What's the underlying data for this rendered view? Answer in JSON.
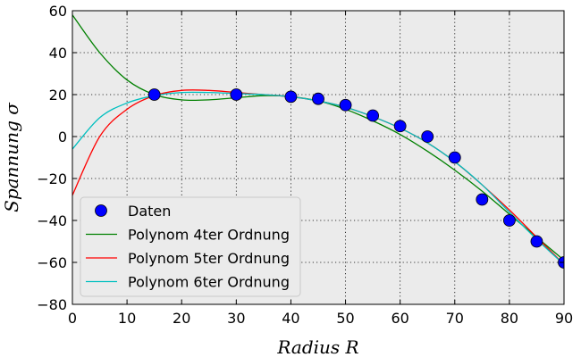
{
  "chart_data": {
    "type": "line",
    "title": "",
    "xlabel": "Radius R",
    "ylabel": "Spannung σ",
    "xlim": [
      0,
      90
    ],
    "ylim": [
      -80,
      60
    ],
    "xticks": [
      0,
      10,
      20,
      30,
      40,
      50,
      60,
      70,
      80,
      90
    ],
    "xtick_labels": [
      "0",
      "10",
      "20",
      "30",
      "40",
      "50",
      "60",
      "70",
      "80",
      "90"
    ],
    "yticks": [
      -80,
      -60,
      -40,
      -20,
      0,
      20,
      40,
      60
    ],
    "ytick_labels": [
      "−80",
      "−60",
      "−40",
      "−20",
      "0",
      "20",
      "40",
      "60"
    ],
    "grid": true,
    "legend_position": "bottom-left",
    "background": "#ebebeb",
    "series": [
      {
        "name": "Daten",
        "kind": "scatter",
        "color": "#0000ff",
        "points": [
          [
            15,
            20
          ],
          [
            30,
            20
          ],
          [
            40,
            19
          ],
          [
            45,
            18
          ],
          [
            50,
            15
          ],
          [
            55,
            10
          ],
          [
            60,
            5
          ],
          [
            65,
            0
          ],
          [
            70,
            -10
          ],
          [
            75,
            -30
          ],
          [
            80,
            -40
          ],
          [
            85,
            -50
          ],
          [
            90,
            -60
          ]
        ]
      },
      {
        "name": "Polynom 4ter Ordnung",
        "kind": "line",
        "color": "#008000",
        "points": [
          [
            0,
            58
          ],
          [
            5,
            40
          ],
          [
            10,
            27
          ],
          [
            15,
            20
          ],
          [
            20,
            17.5
          ],
          [
            25,
            17.5
          ],
          [
            30,
            18.5
          ],
          [
            35,
            19.5
          ],
          [
            40,
            19
          ],
          [
            45,
            17
          ],
          [
            50,
            13
          ],
          [
            55,
            7.5
          ],
          [
            60,
            1
          ],
          [
            65,
            -7
          ],
          [
            70,
            -16
          ],
          [
            75,
            -26
          ],
          [
            80,
            -37
          ],
          [
            85,
            -48
          ],
          [
            90,
            -59
          ]
        ]
      },
      {
        "name": "Polynom 5ter Ordnung",
        "kind": "line",
        "color": "#ff0000",
        "points": [
          [
            0,
            -28
          ],
          [
            5,
            0
          ],
          [
            10,
            13
          ],
          [
            15,
            19.5
          ],
          [
            20,
            22
          ],
          [
            25,
            22
          ],
          [
            30,
            21
          ],
          [
            35,
            20
          ],
          [
            40,
            19
          ],
          [
            45,
            17
          ],
          [
            50,
            14
          ],
          [
            55,
            9.5
          ],
          [
            60,
            4
          ],
          [
            65,
            -3
          ],
          [
            70,
            -12
          ],
          [
            75,
            -23
          ],
          [
            80,
            -35
          ],
          [
            85,
            -48
          ],
          [
            90,
            -61
          ]
        ]
      },
      {
        "name": "Polynom 6ter Ordnung",
        "kind": "line",
        "color": "#00bfbf",
        "points": [
          [
            0,
            -6
          ],
          [
            5,
            9
          ],
          [
            10,
            16
          ],
          [
            15,
            19.5
          ],
          [
            20,
            21
          ],
          [
            25,
            21
          ],
          [
            30,
            20.5
          ],
          [
            35,
            20
          ],
          [
            40,
            19
          ],
          [
            45,
            17
          ],
          [
            50,
            14
          ],
          [
            55,
            9.5
          ],
          [
            60,
            4
          ],
          [
            65,
            -3
          ],
          [
            70,
            -12
          ],
          [
            75,
            -23
          ],
          [
            80,
            -36
          ],
          [
            85,
            -49
          ],
          [
            90,
            -61
          ]
        ]
      }
    ]
  }
}
